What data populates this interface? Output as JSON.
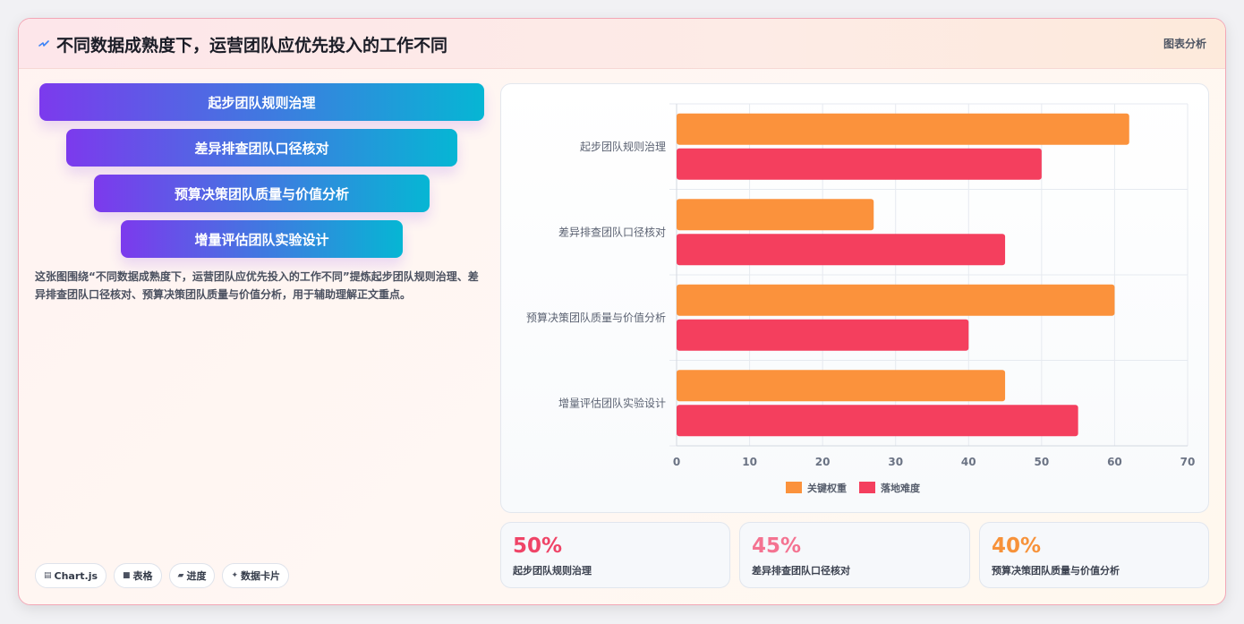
{
  "header": {
    "icon": "sparkle-line-icon",
    "title": "不同数据成熟度下，运营团队应优先投入的工作不同",
    "right_label": "图表分析"
  },
  "funnel": {
    "steps": [
      "起步团队规则治理",
      "差异排查团队口径核对",
      "预算决策团队质量与价值分析",
      "增量评估团队实验设计"
    ]
  },
  "description": "这张图围绕“不同数据成熟度下，运营团队应优先投入的工作不同”提炼起步团队规则治理、差异排查团队口径核对、预算决策团队质量与价值分析，用于辅助理解正文重点。",
  "tags": [
    {
      "icon": "chart-icon",
      "label": "Chart.js"
    },
    {
      "icon": "table-icon",
      "label": "表格"
    },
    {
      "icon": "progress-icon",
      "label": "进度"
    },
    {
      "icon": "sparkle-icon",
      "label": "数据卡片"
    }
  ],
  "chart_data": {
    "type": "bar",
    "orientation": "horizontal",
    "categories": [
      "起步团队规则治理",
      "差异排查团队口径核对",
      "预算决策团队质量与价值分析",
      "增量评估团队实验设计"
    ],
    "series": [
      {
        "name": "关键权重",
        "color": "#fb923c",
        "values": [
          62,
          27,
          60,
          45
        ]
      },
      {
        "name": "落地难度",
        "color": "#f43f5e",
        "values": [
          50,
          45,
          40,
          55
        ]
      }
    ],
    "xlim": [
      0,
      70
    ],
    "xticks": [
      0,
      10,
      20,
      30,
      40,
      50,
      60,
      70
    ],
    "grid": true,
    "legend_position": "bottom"
  },
  "stats": [
    {
      "value": "50%",
      "label": "起步团队规则治理",
      "color": "#ef4467"
    },
    {
      "value": "45%",
      "label": "差异排查团队口径核对",
      "color": "#f47391"
    },
    {
      "value": "40%",
      "label": "预算决策团队质量与价值分析",
      "color": "#f7923a"
    }
  ]
}
